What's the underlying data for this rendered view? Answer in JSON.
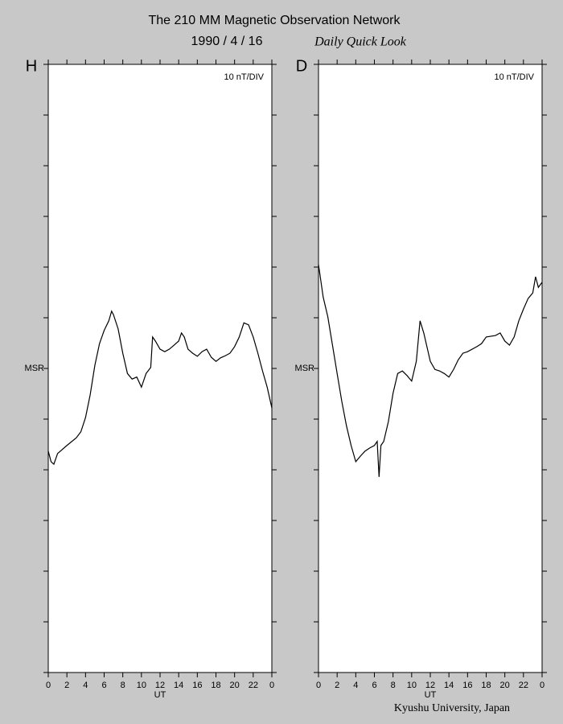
{
  "header": {
    "title": "The 210 MM Magnetic Observation Network",
    "date": "1990 / 4 / 16",
    "subtitle": "Daily Quick Look"
  },
  "footer": "Kyushu University, Japan",
  "chart_data": [
    {
      "type": "line",
      "title": "H",
      "annotation": "10 nT/DIV",
      "xlabel": "UT",
      "color": "#000000",
      "xlim": [
        0,
        24
      ],
      "xticks": [
        0,
        2,
        4,
        6,
        8,
        10,
        12,
        14,
        16,
        18,
        20,
        22,
        {
          "value": 24,
          "label": "0"
        }
      ],
      "ylim": [
        -60,
        60
      ],
      "ytick_step": 10,
      "yticks": [
        {
          "value": 0,
          "label": "MSR"
        }
      ],
      "x": [
        0,
        0.3,
        0.6,
        1,
        2,
        3,
        3.5,
        4,
        4.5,
        5,
        5.5,
        6,
        6.5,
        6.8,
        7,
        7.5,
        8,
        8.5,
        9,
        9.5,
        10,
        10.5,
        11,
        11.2,
        11.5,
        12,
        12.5,
        13,
        13.5,
        14,
        14.3,
        14.6,
        15,
        15.5,
        16,
        16.5,
        17,
        17.5,
        18,
        18.5,
        19,
        19.5,
        20,
        20.5,
        21,
        21.5,
        22,
        22.5,
        23,
        23.5,
        24
      ],
      "values": [
        -16.3,
        -18.4,
        -18.9,
        -16.8,
        -15.2,
        -13.7,
        -12.5,
        -9.7,
        -5.2,
        0.6,
        4.9,
        7.5,
        9.4,
        11.3,
        10.6,
        7.8,
        3.0,
        -1.0,
        -2.1,
        -1.7,
        -3.7,
        -1.0,
        0.2,
        6.2,
        5.4,
        3.8,
        3.3,
        3.8,
        4.6,
        5.4,
        7.0,
        6.2,
        3.8,
        3.0,
        2.4,
        3.3,
        3.8,
        2.2,
        1.4,
        2.1,
        2.5,
        3.0,
        4.3,
        6.2,
        9.0,
        8.6,
        6.2,
        3.0,
        -0.5,
        -3.7,
        -7.8
      ]
    },
    {
      "type": "line",
      "title": "D",
      "annotation": "10 nT/DIV",
      "xlabel": "UT",
      "color": "#000000",
      "xlim": [
        0,
        24
      ],
      "xticks": [
        0,
        2,
        4,
        6,
        8,
        10,
        12,
        14,
        16,
        18,
        20,
        22,
        {
          "value": 24,
          "label": "0"
        }
      ],
      "ylim": [
        -60,
        60
      ],
      "ytick_step": 10,
      "yticks": [
        {
          "value": 0,
          "label": "MSR"
        }
      ],
      "x": [
        0,
        0.5,
        1,
        1.5,
        2,
        2.5,
        3,
        3.5,
        4,
        4.5,
        5,
        5.5,
        6,
        6.3,
        6.5,
        6.7,
        7,
        7.5,
        8,
        8.5,
        9,
        9.5,
        10,
        10.5,
        10.9,
        11.3,
        12,
        12.5,
        13,
        13.5,
        14,
        14.5,
        15,
        15.5,
        16,
        17,
        17.5,
        18,
        19,
        19.5,
        20,
        20.5,
        21,
        21.5,
        22,
        22.5,
        23,
        23.3,
        23.6,
        24
      ],
      "values": [
        20.5,
        14.1,
        10.2,
        4.6,
        -1.0,
        -6.5,
        -11.3,
        -15.2,
        -18.4,
        -17.3,
        -16.3,
        -15.7,
        -15.2,
        -14.4,
        -21.4,
        -15.2,
        -14.4,
        -10.5,
        -4.9,
        -1.0,
        -0.5,
        -1.4,
        -2.5,
        1.4,
        9.4,
        7.0,
        1.4,
        -0.2,
        -0.5,
        -1.0,
        -1.7,
        -0.2,
        1.7,
        3.0,
        3.3,
        4.3,
        4.9,
        6.2,
        6.5,
        7.0,
        5.4,
        4.6,
        6.2,
        9.4,
        11.7,
        13.8,
        14.9,
        18.1,
        16.0,
        17.0
      ]
    }
  ]
}
